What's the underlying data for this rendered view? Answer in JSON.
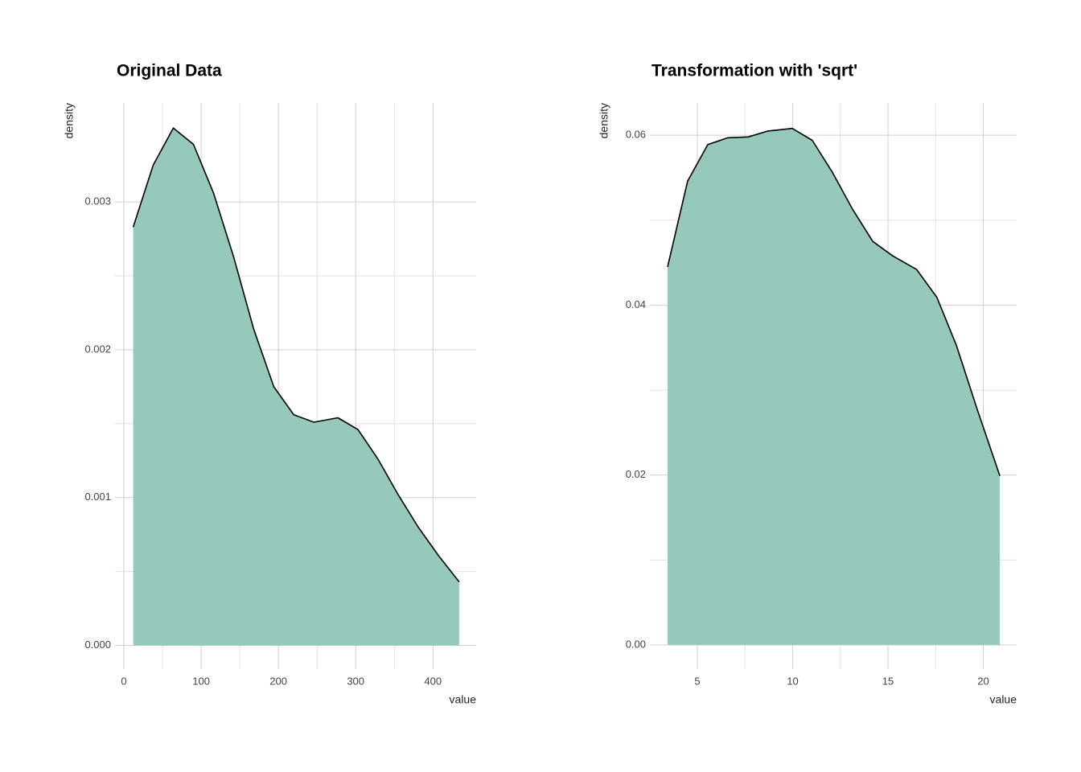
{
  "chart_data": [
    {
      "type": "area",
      "title": "Original Data",
      "x_label": "value",
      "y_label": "density",
      "x": [
        12,
        38,
        64,
        90,
        116,
        142,
        168,
        194,
        220,
        246,
        277,
        303,
        329,
        355,
        381,
        407,
        434
      ],
      "values": [
        0.00283,
        0.00325,
        0.0035,
        0.00339,
        0.00306,
        0.00263,
        0.00214,
        0.00175,
        0.00156,
        0.00151,
        0.00154,
        0.00146,
        0.00126,
        0.00102,
        0.0008,
        0.00061,
        0.00043
      ],
      "color": "#96c8bb",
      "line_color": "#000000",
      "xlim": [
        -11.5,
        456
      ],
      "ylim": [
        -0.00016,
        0.00367
      ],
      "xticks": [
        0,
        100,
        200,
        300,
        400
      ],
      "yticks": [
        {
          "value": 0,
          "label": "0.000"
        },
        {
          "value": 0.001,
          "label": "0.001"
        },
        {
          "value": 0.002,
          "label": "0.002"
        },
        {
          "value": 0.003,
          "label": "0.003"
        }
      ],
      "grid": true
    },
    {
      "type": "area",
      "title": "Transformation with 'sqrt'",
      "x_label": "value",
      "y_label": "density",
      "x": [
        3.44,
        4.49,
        5.55,
        6.6,
        7.66,
        8.71,
        9.98,
        11.03,
        12.09,
        13.14,
        14.2,
        15.25,
        16.5,
        17.57,
        18.6,
        19.7,
        20.87
      ],
      "values": [
        0.0445,
        0.0546,
        0.0589,
        0.0597,
        0.0598,
        0.0605,
        0.0608,
        0.0594,
        0.0556,
        0.0513,
        0.0475,
        0.0458,
        0.0442,
        0.0409,
        0.0352,
        0.0276,
        0.0199
      ],
      "color": "#96c8bb",
      "line_color": "#000000",
      "xlim": [
        2.51,
        21.75
      ],
      "ylim": [
        -0.00284,
        0.0638
      ],
      "xticks": [
        5,
        10,
        15,
        20
      ],
      "yticks": [
        {
          "value": 0,
          "label": "0.00"
        },
        {
          "value": 0.02,
          "label": "0.02"
        },
        {
          "value": 0.04,
          "label": "0.04"
        },
        {
          "value": 0.06,
          "label": "0.06"
        }
      ],
      "grid": true
    }
  ]
}
